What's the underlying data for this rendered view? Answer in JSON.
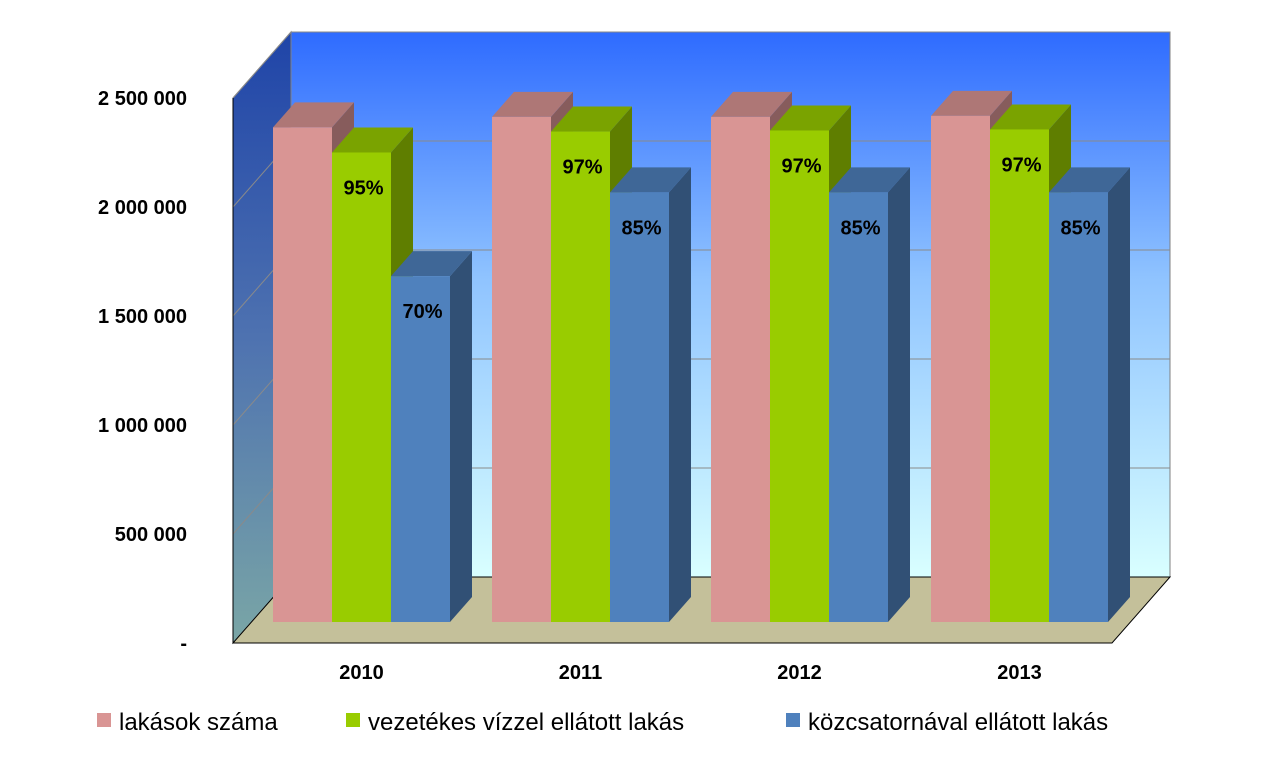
{
  "chart_data": {
    "type": "bar",
    "categories": [
      "2010",
      "2011",
      "2012",
      "2013"
    ],
    "series": [
      {
        "name": "lakások száma",
        "values": [
          2360000,
          2410000,
          2410000,
          2415000
        ],
        "color": "#D99594",
        "labels": [
          "",
          "",
          "",
          ""
        ]
      },
      {
        "name": "vezetékes vízzel ellátott lakás",
        "values": [
          2240000,
          2340000,
          2345000,
          2350000
        ],
        "color": "#99CC00",
        "labels": [
          "95%",
          "97%",
          "97%",
          "97%"
        ]
      },
      {
        "name": "közcsatornával ellátott lakás",
        "values": [
          1650000,
          2050000,
          2050000,
          2050000
        ],
        "color": "#4F81BD",
        "labels": [
          "70%",
          "85%",
          "85%",
          "85%"
        ]
      }
    ],
    "yticks": [
      "-",
      "500 000",
      "1 000 000",
      "1 500 000",
      "2 000 000",
      "2 500 000"
    ],
    "ylim": [
      0,
      2500000
    ],
    "title": "",
    "xlabel": "",
    "ylabel": "",
    "grid": true,
    "three_d": true,
    "legend": "bottom"
  }
}
